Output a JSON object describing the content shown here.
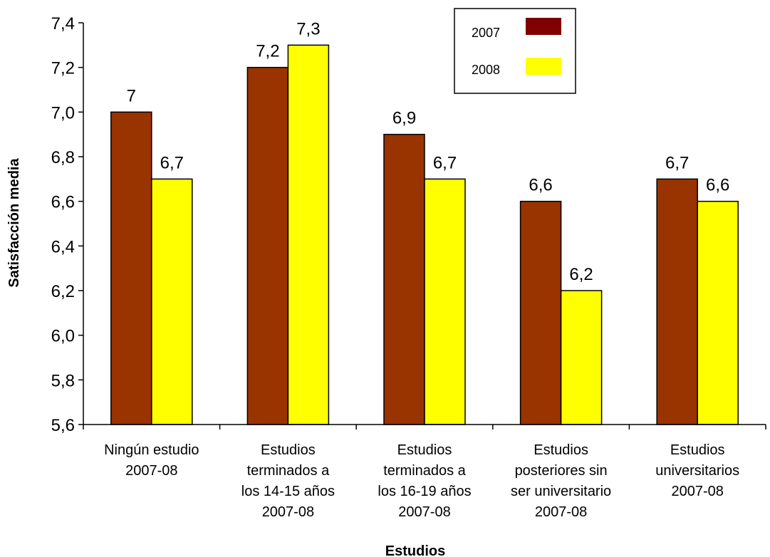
{
  "chart_data": {
    "type": "bar",
    "title": "",
    "xlabel": "Estudios",
    "ylabel": "Satisfacción media",
    "ylim": [
      5.6,
      7.4
    ],
    "yticks": [
      "5,6",
      "5,8",
      "6,0",
      "6,2",
      "6,4",
      "6,6",
      "6,8",
      "7,0",
      "7,2",
      "7,4"
    ],
    "categories": [
      [
        "Ningún estudio",
        "2007-08"
      ],
      [
        "Estudios",
        "terminados a",
        "los 14-15 años",
        "2007-08"
      ],
      [
        "Estudios",
        "terminados a",
        "los 16-19 años",
        "2007-08"
      ],
      [
        "Estudios",
        "posteriores sin",
        "ser universitario",
        "2007-08"
      ],
      [
        "Estudios",
        "universitarios",
        "2007-08"
      ]
    ],
    "series": [
      {
        "name": "2007",
        "color": "#993300",
        "legend_color": "#800000",
        "values": [
          7.0,
          7.2,
          6.9,
          6.6,
          6.7
        ],
        "labels": [
          "7",
          "7,2",
          "6,9",
          "6,6",
          "6,7"
        ]
      },
      {
        "name": "2008",
        "color": "#FFFF00",
        "legend_color": "#FFFF00",
        "values": [
          6.7,
          7.3,
          6.7,
          6.2,
          6.6
        ],
        "labels": [
          "6,7",
          "7,3",
          "6,7",
          "6,2",
          "6,6"
        ]
      }
    ],
    "grid": false,
    "legend": "top-right"
  }
}
